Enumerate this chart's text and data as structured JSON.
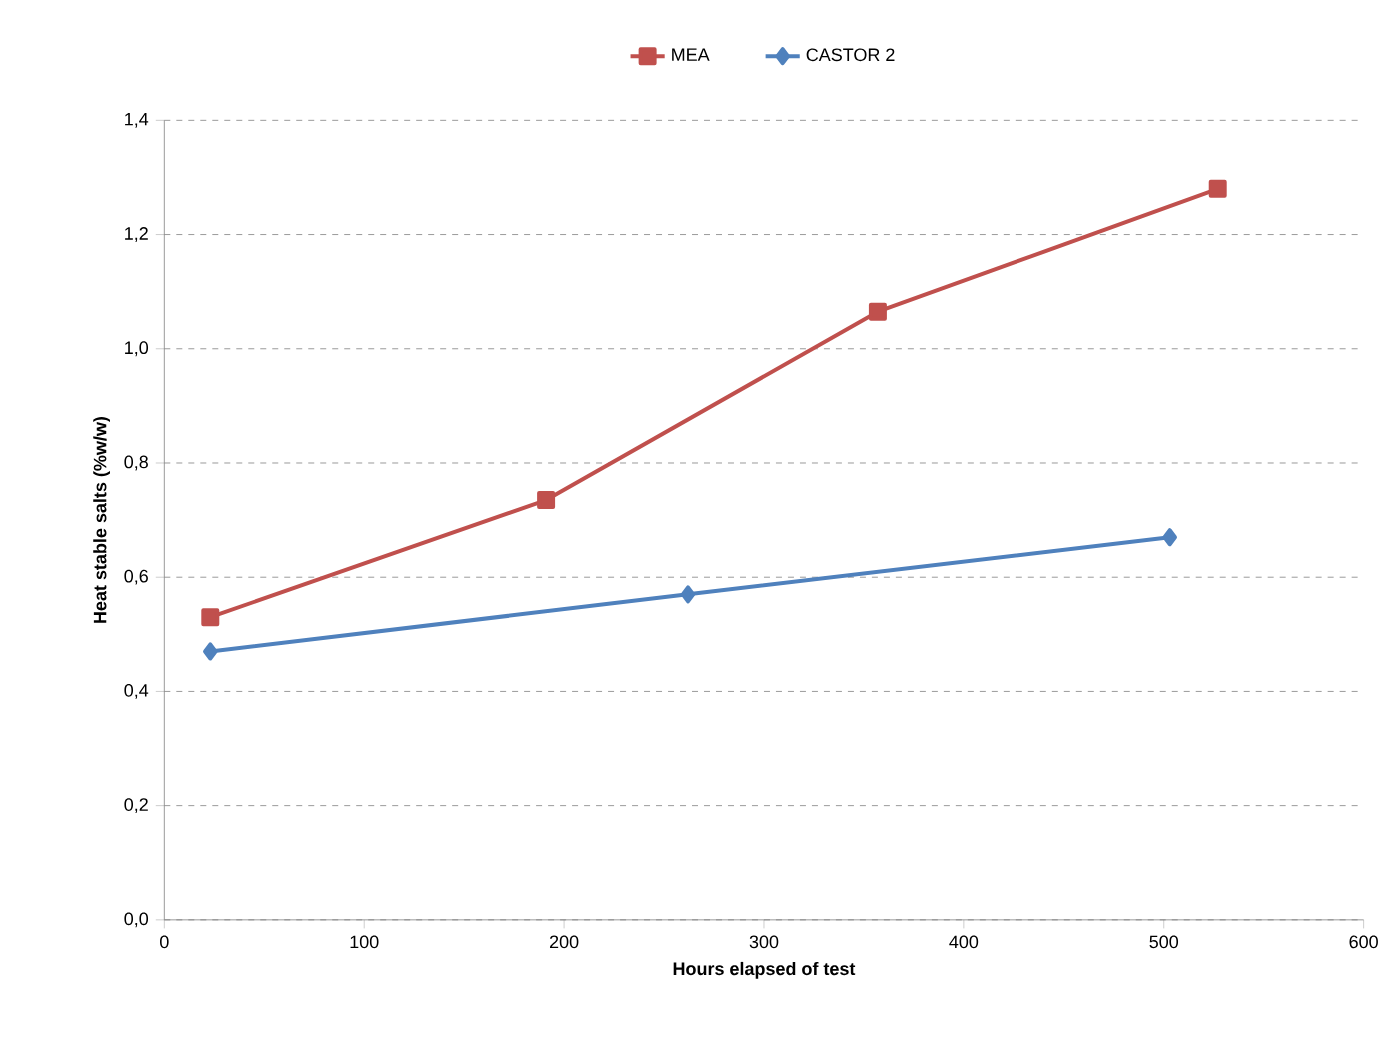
{
  "chart_data": {
    "type": "line",
    "xlabel": "Hours elapsed of test",
    "ylabel": "Heat stable salts (%w/w)",
    "series": [
      {
        "name": "MEA",
        "color": "#c0504d",
        "marker": "square",
        "x": [
          23,
          191,
          357,
          527
        ],
        "values": [
          0.53,
          0.735,
          1.065,
          1.28
        ]
      },
      {
        "name": "CASTOR 2",
        "color": "#4f81bd",
        "marker": "diamond",
        "x": [
          23,
          262,
          503
        ],
        "values": [
          0.47,
          0.57,
          0.67
        ]
      }
    ],
    "xlim": [
      0,
      600
    ],
    "xticks": [
      0,
      100,
      200,
      300,
      400,
      500,
      600
    ],
    "ylim": [
      0,
      1.4
    ],
    "yticks": [
      {
        "value": 0,
        "label": "0,0"
      },
      {
        "value": 0.2,
        "label": "0,2"
      },
      {
        "value": 0.4,
        "label": "0,4"
      },
      {
        "value": 0.6,
        "label": "0,6"
      },
      {
        "value": 0.8,
        "label": "0,8"
      },
      {
        "value": 1.0,
        "label": "1,0"
      },
      {
        "value": 1.2,
        "label": "1,2"
      },
      {
        "value": 1.4,
        "label": "1,4"
      }
    ],
    "grid": "y",
    "legend": "top",
    "line_style": "solid"
  }
}
